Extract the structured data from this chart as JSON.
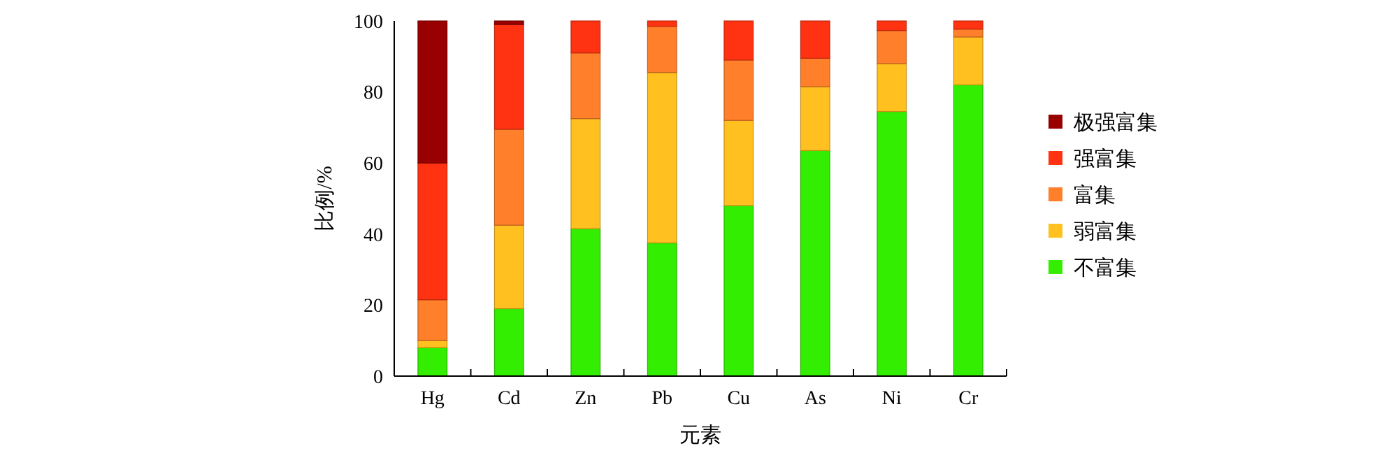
{
  "chart_data": {
    "type": "bar",
    "stacked": true,
    "xlabel": "元素",
    "ylabel": "比例/%",
    "categories": [
      "Hg",
      "Cd",
      "Zn",
      "Pb",
      "Cu",
      "As",
      "Ni",
      "Cr"
    ],
    "ylim": [
      0,
      100
    ],
    "yticks": [
      0,
      20,
      40,
      60,
      80,
      100
    ],
    "legend": "right",
    "grid": false,
    "series": [
      {
        "name": "不富集",
        "color": "#33ee00",
        "values": [
          8,
          19,
          41.5,
          37.5,
          48,
          63.5,
          74.5,
          82
        ]
      },
      {
        "name": "弱富集",
        "color": "#ffc020",
        "values": [
          2,
          23.5,
          31,
          48,
          24,
          18,
          13.5,
          13.5
        ]
      },
      {
        "name": "富集",
        "color": "#ff7f2a",
        "values": [
          11.5,
          27,
          18.5,
          13,
          17,
          8,
          9.3,
          2.2
        ]
      },
      {
        "name": "强富集",
        "color": "#ff3311",
        "values": [
          38.5,
          29.5,
          9,
          1.5,
          11,
          10.5,
          2.7,
          2.3
        ]
      },
      {
        "name": "极强富集",
        "color": "#990000",
        "values": [
          40,
          1,
          0,
          0,
          0,
          0,
          0,
          0
        ]
      }
    ]
  }
}
